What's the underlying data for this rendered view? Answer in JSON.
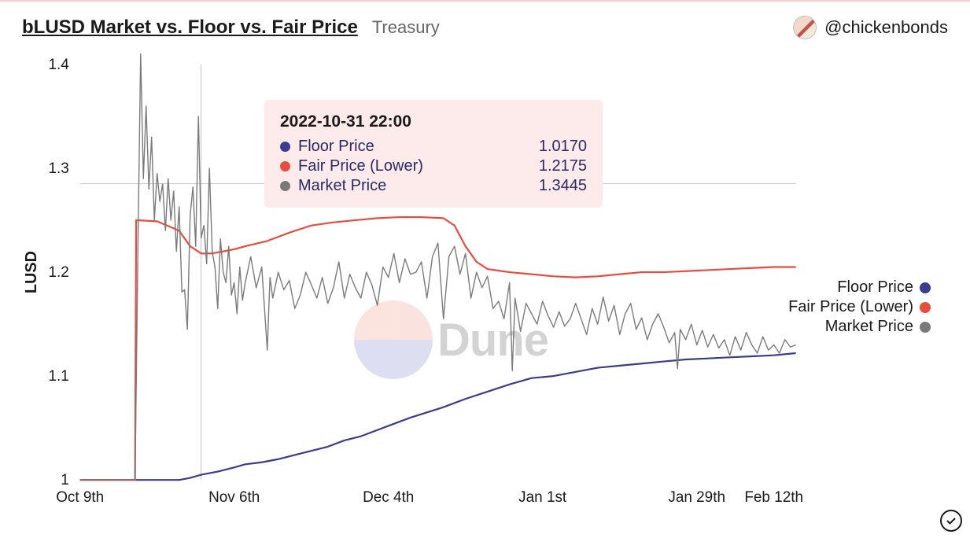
{
  "header": {
    "title": "bLUSD Market vs. Floor vs. Fair Price",
    "subtitle": "Treasury",
    "handle": "@chickenbonds"
  },
  "chart": {
    "type": "line",
    "ylabel": "LUSD",
    "ylim": [
      1.0,
      1.4
    ],
    "yticks": [
      1.0,
      1.1,
      1.2,
      1.3,
      1.4
    ],
    "ytick_labels": [
      "1",
      "1.1",
      "1.2",
      "1.3",
      "1.4"
    ],
    "xlim": [
      0,
      130
    ],
    "xticks": [
      0,
      28,
      56,
      84,
      112,
      126
    ],
    "xtick_labels": [
      "Oct 9th",
      "Nov 6th",
      "Dec 4th",
      "Jan 1st",
      "Jan 29th",
      "Feb 12th"
    ],
    "grid_color": "#888888",
    "background_color": "#ffffff",
    "crosshair_x": 22,
    "crosshair_y": 1.285,
    "series": [
      {
        "name": "Floor Price",
        "color": "#3b3b8f",
        "width": 2.2,
        "points": [
          [
            0,
            1.0
          ],
          [
            10,
            1.0
          ],
          [
            14,
            1.0
          ],
          [
            18,
            1.0
          ],
          [
            20,
            1.002
          ],
          [
            22,
            1.005
          ],
          [
            25,
            1.008
          ],
          [
            28,
            1.012
          ],
          [
            30,
            1.015
          ],
          [
            33,
            1.017
          ],
          [
            36,
            1.02
          ],
          [
            39,
            1.024
          ],
          [
            42,
            1.028
          ],
          [
            45,
            1.032
          ],
          [
            48,
            1.038
          ],
          [
            51,
            1.042
          ],
          [
            54,
            1.048
          ],
          [
            57,
            1.054
          ],
          [
            60,
            1.06
          ],
          [
            63,
            1.065
          ],
          [
            66,
            1.07
          ],
          [
            70,
            1.078
          ],
          [
            74,
            1.085
          ],
          [
            78,
            1.092
          ],
          [
            82,
            1.098
          ],
          [
            86,
            1.1
          ],
          [
            90,
            1.104
          ],
          [
            94,
            1.108
          ],
          [
            98,
            1.11
          ],
          [
            102,
            1.112
          ],
          [
            106,
            1.114
          ],
          [
            110,
            1.116
          ],
          [
            114,
            1.117
          ],
          [
            118,
            1.118
          ],
          [
            122,
            1.119
          ],
          [
            126,
            1.12
          ],
          [
            130,
            1.122
          ]
        ]
      },
      {
        "name": "Fair Price (Lower)",
        "color": "#e84c3d",
        "width": 2.2,
        "points": [
          [
            0,
            1.0
          ],
          [
            10,
            1.0
          ],
          [
            10.2,
            1.25
          ],
          [
            14,
            1.249
          ],
          [
            18,
            1.24
          ],
          [
            20,
            1.225
          ],
          [
            22,
            1.218
          ],
          [
            24,
            1.218
          ],
          [
            26,
            1.22
          ],
          [
            28,
            1.222
          ],
          [
            30,
            1.225
          ],
          [
            34,
            1.23
          ],
          [
            38,
            1.238
          ],
          [
            42,
            1.245
          ],
          [
            46,
            1.248
          ],
          [
            50,
            1.25
          ],
          [
            54,
            1.252
          ],
          [
            58,
            1.253
          ],
          [
            62,
            1.253
          ],
          [
            66,
            1.252
          ],
          [
            68,
            1.245
          ],
          [
            70,
            1.225
          ],
          [
            72,
            1.21
          ],
          [
            74,
            1.203
          ],
          [
            78,
            1.2
          ],
          [
            82,
            1.198
          ],
          [
            86,
            1.196
          ],
          [
            90,
            1.195
          ],
          [
            94,
            1.196
          ],
          [
            98,
            1.198
          ],
          [
            102,
            1.2
          ],
          [
            106,
            1.2
          ],
          [
            110,
            1.201
          ],
          [
            114,
            1.202
          ],
          [
            118,
            1.203
          ],
          [
            122,
            1.204
          ],
          [
            126,
            1.205
          ],
          [
            130,
            1.205
          ]
        ]
      },
      {
        "name": "Market Price",
        "color": "#7a7a7a",
        "width": 1.4,
        "points": [
          [
            0,
            1.0
          ],
          [
            9,
            1.0
          ],
          [
            10,
            1.0
          ],
          [
            10.5,
            1.215
          ],
          [
            11,
            1.41
          ],
          [
            11.5,
            1.29
          ],
          [
            12,
            1.36
          ],
          [
            12.5,
            1.28
          ],
          [
            13,
            1.33
          ],
          [
            13.5,
            1.25
          ],
          [
            14,
            1.295
          ],
          [
            14.5,
            1.268
          ],
          [
            15,
            1.285
          ],
          [
            15.5,
            1.24
          ],
          [
            16,
            1.29
          ],
          [
            16.5,
            1.25
          ],
          [
            17,
            1.278
          ],
          [
            17.5,
            1.22
          ],
          [
            18,
            1.263
          ],
          [
            18.5,
            1.181
          ],
          [
            19,
            1.183
          ],
          [
            19.5,
            1.145
          ],
          [
            20,
            1.255
          ],
          [
            20.5,
            1.282
          ],
          [
            21,
            1.225
          ],
          [
            21.5,
            1.35
          ],
          [
            22,
            1.233
          ],
          [
            22.5,
            1.245
          ],
          [
            23,
            1.208
          ],
          [
            23.5,
            1.3
          ],
          [
            24,
            1.22
          ],
          [
            24.5,
            1.205
          ],
          [
            25,
            1.165
          ],
          [
            25.5,
            1.232
          ],
          [
            26,
            1.2
          ],
          [
            26.5,
            1.19
          ],
          [
            27,
            1.225
          ],
          [
            27.5,
            1.178
          ],
          [
            28,
            1.19
          ],
          [
            28.5,
            1.16
          ],
          [
            29,
            1.205
          ],
          [
            29.5,
            1.173
          ],
          [
            30,
            1.19
          ],
          [
            31,
            1.215
          ],
          [
            32,
            1.185
          ],
          [
            33,
            1.205
          ],
          [
            34,
            1.125
          ],
          [
            34.5,
            1.195
          ],
          [
            35,
            1.175
          ],
          [
            36,
            1.2
          ],
          [
            37,
            1.183
          ],
          [
            38,
            1.192
          ],
          [
            39,
            1.165
          ],
          [
            40,
            1.178
          ],
          [
            41,
            1.2
          ],
          [
            42,
            1.188
          ],
          [
            43,
            1.175
          ],
          [
            44,
            1.195
          ],
          [
            45,
            1.17
          ],
          [
            46,
            1.185
          ],
          [
            47,
            1.21
          ],
          [
            48,
            1.175
          ],
          [
            49,
            1.198
          ],
          [
            50,
            1.185
          ],
          [
            51,
            1.175
          ],
          [
            52,
            1.2
          ],
          [
            53,
            1.188
          ],
          [
            54,
            1.168
          ],
          [
            55,
            1.205
          ],
          [
            56,
            1.195
          ],
          [
            57,
            1.218
          ],
          [
            58,
            1.19
          ],
          [
            59,
            1.213
          ],
          [
            60,
            1.198
          ],
          [
            61,
            1.2
          ],
          [
            62,
            1.21
          ],
          [
            63,
            1.175
          ],
          [
            64,
            1.215
          ],
          [
            65,
            1.228
          ],
          [
            66,
            1.155
          ],
          [
            67,
            1.215
          ],
          [
            68,
            1.225
          ],
          [
            69,
            1.198
          ],
          [
            70,
            1.218
          ],
          [
            71,
            1.175
          ],
          [
            72,
            1.2
          ],
          [
            73,
            1.185
          ],
          [
            74,
            1.196
          ],
          [
            75,
            1.165
          ],
          [
            76,
            1.172
          ],
          [
            77,
            1.155
          ],
          [
            78,
            1.19
          ],
          [
            78.5,
            1.105
          ],
          [
            79,
            1.175
          ],
          [
            80,
            1.143
          ],
          [
            81,
            1.17
          ],
          [
            82,
            1.16
          ],
          [
            83,
            1.15
          ],
          [
            84,
            1.172
          ],
          [
            85,
            1.158
          ],
          [
            86,
            1.147
          ],
          [
            87,
            1.162
          ],
          [
            88,
            1.148
          ],
          [
            89,
            1.155
          ],
          [
            90,
            1.17
          ],
          [
            91,
            1.155
          ],
          [
            92,
            1.14
          ],
          [
            93,
            1.165
          ],
          [
            94,
            1.15
          ],
          [
            95,
            1.176
          ],
          [
            96,
            1.153
          ],
          [
            97,
            1.168
          ],
          [
            98,
            1.14
          ],
          [
            99,
            1.16
          ],
          [
            100,
            1.17
          ],
          [
            101,
            1.145
          ],
          [
            102,
            1.156
          ],
          [
            103,
            1.135
          ],
          [
            104,
            1.15
          ],
          [
            105,
            1.16
          ],
          [
            106,
            1.147
          ],
          [
            107,
            1.132
          ],
          [
            108,
            1.142
          ],
          [
            108.5,
            1.107
          ],
          [
            109,
            1.145
          ],
          [
            110,
            1.135
          ],
          [
            111,
            1.15
          ],
          [
            112,
            1.13
          ],
          [
            113,
            1.144
          ],
          [
            114,
            1.128
          ],
          [
            115,
            1.14
          ],
          [
            116,
            1.127
          ],
          [
            117,
            1.135
          ],
          [
            118,
            1.12
          ],
          [
            119,
            1.138
          ],
          [
            120,
            1.125
          ],
          [
            121,
            1.142
          ],
          [
            122,
            1.13
          ],
          [
            123,
            1.122
          ],
          [
            124,
            1.138
          ],
          [
            125,
            1.125
          ],
          [
            126,
            1.13
          ],
          [
            127,
            1.122
          ],
          [
            128,
            1.135
          ],
          [
            129,
            1.128
          ],
          [
            130,
            1.13
          ]
        ]
      }
    ]
  },
  "tooltip": {
    "date": "2022-10-31 22:00",
    "rows": [
      {
        "label": "Floor Price",
        "value": "1.0170",
        "color": "#3b3b8f"
      },
      {
        "label": "Fair Price (Lower)",
        "value": "1.2175",
        "color": "#e84c3d"
      },
      {
        "label": "Market Price",
        "value": "1.3445",
        "color": "#7a7a7a"
      }
    ]
  },
  "legend": [
    {
      "label": "Floor Price",
      "color": "#3b3b8f"
    },
    {
      "label": "Fair Price (Lower)",
      "color": "#e84c3d"
    },
    {
      "label": "Market Price",
      "color": "#7a7a7a"
    }
  ],
  "watermark": "Dune"
}
